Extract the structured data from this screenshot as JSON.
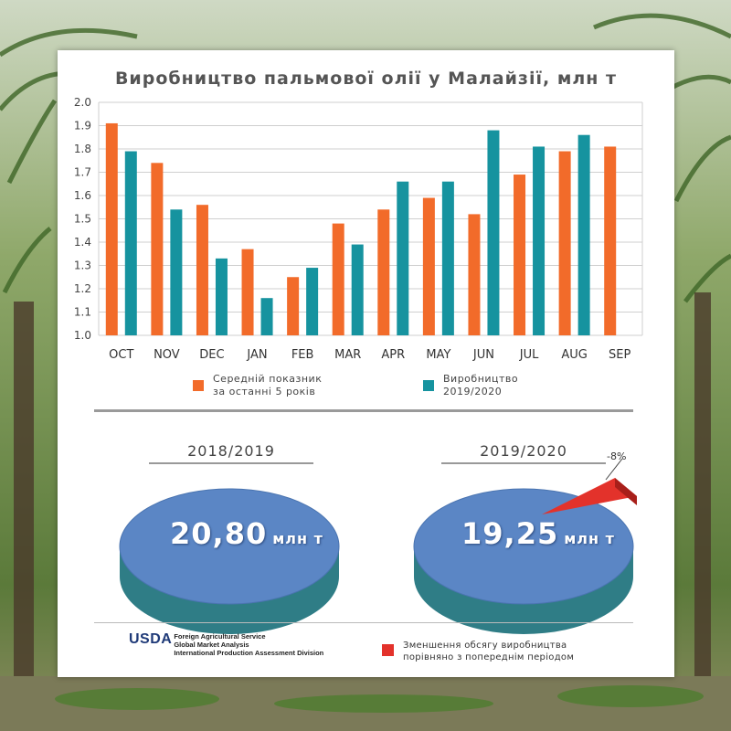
{
  "title": "Виробництво пальмової олії у Малайзії, млн т",
  "colors": {
    "avg": "#f26b2a",
    "prod": "#16939f",
    "pie_top": "#5b86c5",
    "pie_side": "#2f7d86",
    "decrease": "#e3322b"
  },
  "chart_data": [
    {
      "type": "bar",
      "categories": [
        "OCT",
        "NOV",
        "DEC",
        "JAN",
        "FEB",
        "MAR",
        "APR",
        "MAY",
        "JUN",
        "JUL",
        "AUG",
        "SEP"
      ],
      "series": [
        {
          "name": "Середній показник за останні 5 років",
          "values": [
            1.91,
            1.74,
            1.56,
            1.37,
            1.25,
            1.48,
            1.54,
            1.59,
            1.52,
            1.69,
            1.79,
            1.81
          ]
        },
        {
          "name": "Виробництво 2019/2020",
          "values": [
            1.79,
            1.54,
            1.33,
            1.16,
            1.29,
            1.39,
            1.66,
            1.66,
            1.88,
            1.81,
            1.86,
            null
          ]
        }
      ],
      "yticks": [
        "1.0",
        "1.1",
        "1.2",
        "1.3",
        "1.4",
        "1.5",
        "1.6",
        "1.7",
        "1.8",
        "1.9",
        "2.0"
      ],
      "ylim": [
        1.0,
        2.0
      ],
      "grid": true
    },
    {
      "type": "pie",
      "title": "2018/2019",
      "value_text": "20,80",
      "unit": "млн т"
    },
    {
      "type": "pie",
      "title": "2019/2020",
      "value_text": "19,25",
      "unit": "млн т",
      "slices": [
        {
          "label": "-8%",
          "value": 8
        },
        {
          "label": "",
          "value": 92
        }
      ]
    }
  ],
  "legend": {
    "avg": [
      "Середній показник",
      "за останні 5 років"
    ],
    "prod": [
      "Виробництво",
      "2019/2020"
    ],
    "decrease": [
      "Зменшення обсягу виробництва",
      "порівняно з попереднім періодом"
    ]
  },
  "source": {
    "logo": "USDA",
    "lines": [
      "Foreign Agricultural Service",
      "Global Market Analysis",
      "International Production Assessment Division"
    ]
  }
}
